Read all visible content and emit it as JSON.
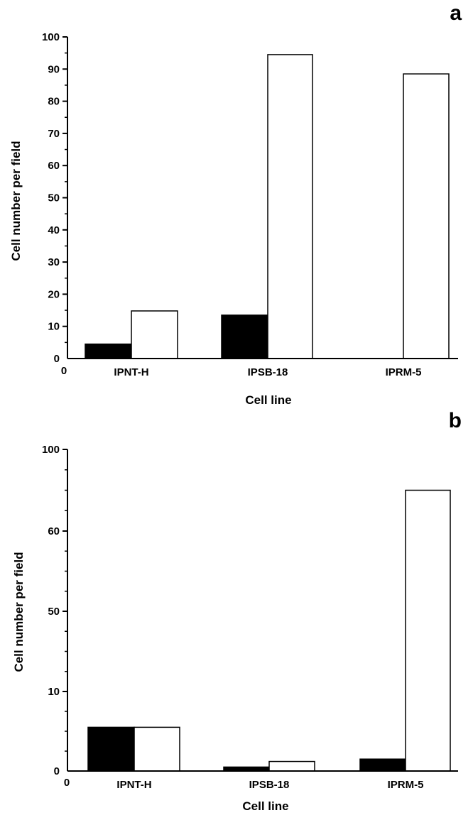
{
  "chart_data": [
    {
      "type": "bar",
      "panel_label": "a",
      "categories": [
        "IPNT-H",
        "IPSB-18",
        "IPRM-5"
      ],
      "series": [
        {
          "color": "#000000",
          "values": [
            4.5,
            13.5,
            0
          ]
        },
        {
          "color": "#ffffff",
          "values": [
            14.8,
            94.5,
            88.5
          ]
        }
      ],
      "xlabel": "Cell line",
      "ylabel": "Cell number per field",
      "ylim": [
        0,
        100
      ],
      "yticks": [
        "0",
        "10",
        "20",
        "30",
        "40",
        "50",
        "60",
        "70",
        "80",
        "90",
        "100"
      ],
      "origin_label": "0",
      "grid": false
    },
    {
      "type": "bar",
      "panel_label": "b",
      "categories": [
        "IPNT-H",
        "IPSB-18",
        "IPRM-5"
      ],
      "series": [
        {
          "color": "#000000",
          "values": [
            5.5,
            0.5,
            1.5
          ]
        },
        {
          "color": "#ffffff",
          "values": [
            5.5,
            1.2,
            80
          ]
        }
      ],
      "xlabel": "Cell line",
      "ylabel": "Cell number per field",
      "ylim": [
        0,
        100
      ],
      "yticks": [
        "0",
        "10",
        "50",
        "60",
        "100"
      ],
      "origin_label": "0",
      "grid": false
    }
  ]
}
